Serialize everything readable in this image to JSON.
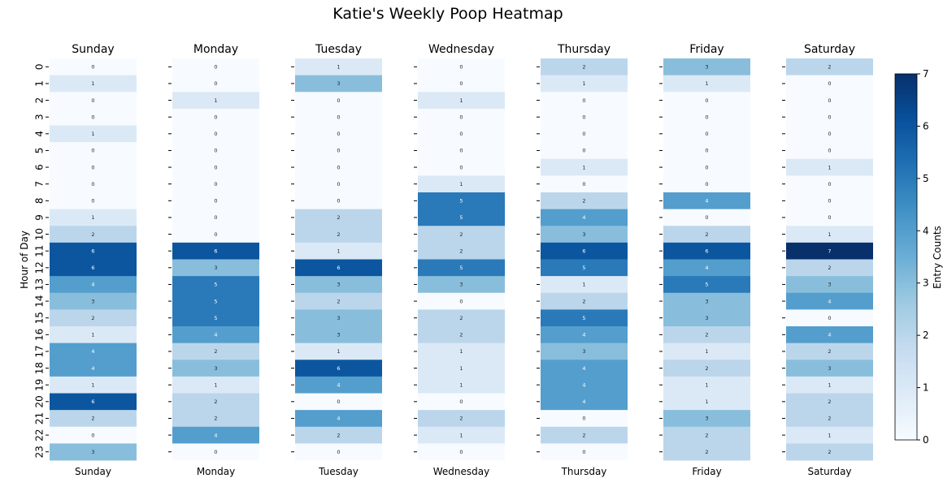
{
  "chart_data": {
    "type": "heatmap",
    "title": "Katie's Weekly Poop Heatmap",
    "ylabel": "Hour of Day",
    "colorbar_label": "Entry Counts",
    "colorbar_range": [
      0,
      7
    ],
    "colorbar_ticks": [
      "0",
      "1",
      "2",
      "3",
      "4",
      "5",
      "6",
      "7"
    ],
    "colormap": "Blues",
    "hours": [
      "0",
      "1",
      "2",
      "3",
      "4",
      "5",
      "6",
      "7",
      "8",
      "9",
      "10",
      "11",
      "12",
      "13",
      "14",
      "15",
      "16",
      "17",
      "18",
      "19",
      "20",
      "21",
      "22",
      "23"
    ],
    "days": [
      {
        "name": "Sunday",
        "values": [
          0,
          1,
          0,
          0,
          1,
          0,
          0,
          0,
          0,
          1,
          2,
          6,
          6,
          4,
          3,
          2,
          1,
          4,
          4,
          1,
          6,
          2,
          0,
          3
        ]
      },
      {
        "name": "Monday",
        "values": [
          0,
          0,
          1,
          0,
          0,
          0,
          0,
          0,
          0,
          0,
          0,
          6,
          3,
          5,
          5,
          5,
          4,
          2,
          3,
          1,
          2,
          2,
          4,
          0
        ]
      },
      {
        "name": "Tuesday",
        "values": [
          1,
          3,
          0,
          0,
          0,
          0,
          0,
          0,
          0,
          2,
          2,
          1,
          6,
          3,
          2,
          3,
          3,
          1,
          6,
          4,
          0,
          4,
          2,
          0
        ]
      },
      {
        "name": "Wednesday",
        "values": [
          0,
          0,
          1,
          0,
          0,
          0,
          0,
          1,
          5,
          5,
          2,
          2,
          5,
          3,
          0,
          2,
          2,
          1,
          1,
          1,
          0,
          2,
          1,
          0
        ]
      },
      {
        "name": "Thursday",
        "values": [
          2,
          1,
          0,
          0,
          0,
          0,
          1,
          0,
          2,
          4,
          3,
          6,
          5,
          1,
          2,
          5,
          4,
          3,
          4,
          4,
          4,
          0,
          2,
          0
        ]
      },
      {
        "name": "Friday",
        "values": [
          3,
          1,
          0,
          0,
          0,
          0,
          0,
          0,
          4,
          0,
          2,
          6,
          4,
          5,
          3,
          3,
          2,
          1,
          2,
          1,
          1,
          3,
          2,
          2
        ]
      },
      {
        "name": "Saturday",
        "values": [
          2,
          0,
          0,
          0,
          0,
          0,
          1,
          0,
          0,
          0,
          1,
          7,
          2,
          3,
          4,
          0,
          4,
          2,
          3,
          1,
          2,
          2,
          1,
          2
        ]
      }
    ]
  }
}
